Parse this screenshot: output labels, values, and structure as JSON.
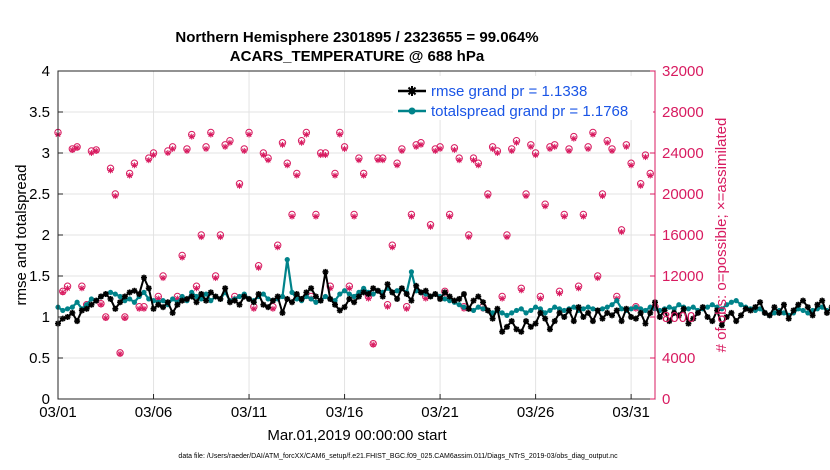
{
  "figure": {
    "title_line1": "Northern Hemisphere 2301895 / 2323655 = 99.064%",
    "title_line2": "ACARS_TEMPERATURE @ 688 hPa",
    "footer": "data file: /Users/raeder/DAI/ATM_forcXX/CAM6_setup/f.e21.FHIST_BGC.f09_025.CAM6assim.011/Diags_NTrS_2019-03/obs_diag_output.nc"
  },
  "colors": {
    "rmse": "#000000",
    "spread": "#00838a",
    "obs": "#d81b60",
    "legend_text": "#1a55e6"
  },
  "chart_data": {
    "type": "line",
    "xlabel": "Mar.01,2019 00:00:00 start",
    "ylabel_left": "rmse and totalspread",
    "ylabel_right": "# of obs: o=possible; ×=assimilated",
    "x_tick_labels": [
      "03/01",
      "03/06",
      "03/11",
      "03/16",
      "03/21",
      "03/26",
      "03/31"
    ],
    "x_tick_days": [
      0,
      5,
      10,
      15,
      20,
      25,
      30
    ],
    "xlim_days": [
      0,
      31.25
    ],
    "ylim_left": [
      0,
      4
    ],
    "y_ticks_left": [
      "0",
      "0.5",
      "1",
      "1.5",
      "2",
      "2.5",
      "3",
      "3.5",
      "4"
    ],
    "ylim_right": [
      0,
      32000
    ],
    "y_ticks_right": [
      "0",
      "4000",
      "8000",
      "12000",
      "16000",
      "20000",
      "24000",
      "28000",
      "32000"
    ],
    "grid": true,
    "legend_position": "top-right",
    "series": [
      {
        "name": "rmse grand pr = 1.1338",
        "step_days": 0.25,
        "values": [
          0.92,
          0.98,
          1.0,
          1.05,
          0.95,
          1.08,
          1.1,
          1.15,
          1.2,
          1.25,
          1.28,
          1.22,
          1.1,
          1.18,
          1.25,
          1.3,
          1.32,
          1.28,
          1.48,
          1.35,
          1.1,
          1.15,
          1.12,
          1.18,
          1.05,
          1.15,
          1.2,
          1.22,
          1.25,
          1.18,
          1.28,
          1.2,
          1.3,
          1.25,
          1.22,
          1.35,
          1.18,
          1.2,
          1.15,
          1.25,
          1.22,
          1.18,
          1.28,
          1.15,
          1.12,
          1.2,
          1.25,
          1.05,
          1.22,
          1.18,
          1.28,
          1.22,
          1.3,
          1.35,
          1.25,
          1.2,
          1.55,
          1.22,
          1.15,
          1.08,
          1.12,
          1.22,
          1.18,
          1.25,
          1.3,
          1.28,
          1.35,
          1.32,
          1.25,
          1.4,
          1.3,
          1.22,
          1.35,
          1.28,
          1.2,
          1.38,
          1.3,
          1.32,
          1.25,
          1.28,
          1.22,
          1.3,
          1.25,
          1.2,
          1.22,
          1.28,
          1.1,
          1.2,
          1.25,
          1.18,
          1.08,
          0.98,
          1.1,
          0.82,
          0.88,
          0.95,
          0.85,
          0.82,
          0.95,
          0.88,
          0.92,
          1.05,
          0.98,
          0.85,
          0.95,
          1.05,
          1.0,
          1.08,
          0.95,
          1.12,
          1.0,
          1.05,
          0.95,
          1.08,
          0.98,
          1.05,
          1.02,
          1.08,
          0.95,
          1.1,
          1.0,
          0.98,
          1.05,
          0.92,
          1.05,
          1.18,
          1.0,
          1.08,
          0.95,
          1.05,
          1.02,
          1.1,
          0.92,
          0.98,
          1.05,
          1.12,
          1.0,
          0.95,
          1.08,
          0.9,
          1.0,
          1.05,
          0.95,
          1.02,
          1.1,
          1.08,
          1.12,
          1.18,
          1.05,
          1.02,
          1.12,
          1.05,
          1.15,
          0.98,
          1.08,
          1.15,
          1.2,
          1.12,
          1.02,
          1.15,
          1.2,
          1.05,
          1.12,
          1.18,
          1.08,
          1.0,
          1.1,
          1.12,
          1.2,
          1.15,
          1.25,
          1.12,
          1.05,
          1.08,
          1.15,
          1.2,
          1.1,
          1.05,
          1.12,
          1.08,
          1.15,
          1.1,
          1.05,
          1.1,
          1.08,
          1.12,
          1.1,
          1.08,
          1.1,
          1.12,
          1.08,
          1.2,
          1.22,
          1.18,
          1.2,
          1.15,
          1.08,
          1.12,
          1.18,
          1.0,
          1.1,
          1.05,
          1.08,
          1.12,
          1.15,
          1.05,
          1.08,
          1.12,
          1.1,
          1.08,
          1.12,
          1.1,
          1.08,
          1.15,
          1.12,
          1.1,
          1.15,
          1.12,
          1.1,
          1.12,
          1.1,
          1.08,
          1.1,
          1.12,
          1.1,
          1.08,
          1.1,
          1.12,
          1.1,
          1.08,
          1.1,
          1.12,
          1.1,
          1.12,
          1.1,
          1.08,
          1.1,
          1.12,
          1.1
        ]
      },
      {
        "name": "totalspread grand pr = 1.1768",
        "step_days": 0.25,
        "values": [
          1.12,
          1.08,
          1.1,
          1.12,
          1.18,
          1.1,
          1.15,
          1.22,
          1.2,
          1.25,
          1.28,
          1.3,
          1.28,
          1.25,
          1.2,
          1.22,
          1.18,
          1.25,
          1.3,
          1.22,
          1.2,
          1.18,
          1.2,
          1.15,
          1.22,
          1.18,
          1.25,
          1.2,
          1.3,
          1.25,
          1.22,
          1.28,
          1.2,
          1.25,
          1.22,
          1.3,
          1.2,
          1.22,
          1.25,
          1.28,
          1.22,
          1.2,
          1.25,
          1.28,
          1.22,
          1.2,
          1.22,
          1.25,
          1.7,
          1.3,
          1.22,
          1.2,
          1.25,
          1.22,
          1.18,
          1.2,
          1.25,
          1.22,
          1.2,
          1.28,
          1.32,
          1.28,
          1.25,
          1.3,
          1.35,
          1.3,
          1.28,
          1.32,
          1.3,
          1.35,
          1.3,
          1.32,
          1.35,
          1.3,
          1.55,
          1.32,
          1.3,
          1.28,
          1.25,
          1.28,
          1.25,
          1.22,
          1.2,
          1.18,
          1.15,
          1.12,
          1.1,
          1.08,
          1.12,
          1.1,
          1.08,
          1.05,
          1.08,
          1.05,
          1.02,
          1.05,
          1.08,
          1.1,
          1.05,
          1.08,
          1.12,
          1.1,
          1.05,
          1.08,
          1.12,
          1.1,
          1.08,
          1.1,
          1.12,
          1.08,
          1.1,
          1.12,
          1.1,
          1.08,
          1.1,
          1.12,
          1.15,
          1.2,
          1.1,
          1.08,
          1.1,
          1.12,
          1.1,
          1.08,
          1.12,
          1.1,
          1.08,
          1.1,
          1.12,
          1.1,
          1.15,
          1.12,
          1.1,
          1.12,
          1.08,
          1.1,
          1.12,
          1.15,
          1.12,
          1.1,
          1.15,
          1.18,
          1.2,
          1.15,
          1.12,
          1.1,
          1.08,
          1.1,
          1.05,
          1.02,
          1.05,
          1.08,
          1.05,
          1.02,
          1.05,
          1.1,
          1.08,
          1.05,
          1.08,
          1.1,
          1.12,
          1.08,
          1.1,
          1.12,
          1.15,
          1.12,
          1.1,
          1.15,
          1.18,
          1.15,
          1.12,
          1.1,
          1.15,
          1.12,
          1.1,
          1.12,
          1.15,
          1.12,
          1.1,
          1.12,
          1.15,
          1.12,
          1.1,
          1.08,
          1.1,
          1.12,
          1.1,
          1.12,
          1.15,
          1.12,
          1.1,
          1.12,
          1.15,
          1.18,
          1.15,
          1.12,
          1.1,
          1.12,
          1.15,
          1.12,
          1.1,
          1.12,
          1.15,
          1.12,
          1.1,
          1.08,
          1.1,
          1.12,
          1.1,
          1.12,
          1.15,
          1.12,
          1.1,
          1.12,
          1.15,
          1.18,
          1.2,
          1.22,
          1.18,
          1.15,
          1.12,
          1.15,
          1.18,
          1.15,
          1.12,
          1.1,
          1.12,
          1.15,
          1.12,
          1.1,
          1.12,
          1.15,
          1.12,
          1.1,
          1.35,
          1.12,
          1.1,
          1.08
        ]
      }
    ],
    "obs_counts": {
      "name": "number of observations",
      "days": [
        0.0,
        0.25,
        0.5,
        0.75,
        1.0,
        1.25,
        1.5,
        1.75,
        2.0,
        2.25,
        2.5,
        2.75,
        3.0,
        3.25,
        3.5,
        3.75,
        4.0,
        4.25,
        4.5,
        4.75,
        5.0,
        5.25,
        5.5,
        5.75,
        6.0,
        6.25,
        6.5,
        6.75,
        7.0,
        7.25,
        7.5,
        7.75,
        8.0,
        8.25,
        8.5,
        8.75,
        9.0,
        9.25,
        9.5,
        9.75,
        10.0,
        10.25,
        10.5,
        10.75,
        11.0,
        11.25,
        11.5,
        11.75,
        12.0,
        12.25,
        12.5,
        12.75,
        13.0,
        13.25,
        13.5,
        13.75,
        14.0,
        14.25,
        14.5,
        14.75,
        15.0,
        15.25,
        15.5,
        15.75,
        16.0,
        16.25,
        16.5,
        16.75,
        17.0,
        17.25,
        17.5,
        17.75,
        18.0,
        18.25,
        18.5,
        18.75,
        19.0,
        19.25,
        19.5,
        19.75,
        20.0,
        20.25,
        20.5,
        20.75,
        21.0,
        21.25,
        21.5,
        21.75,
        22.0,
        22.25,
        22.5,
        22.75,
        23.0,
        23.25,
        23.5,
        23.75,
        24.0,
        24.25,
        24.5,
        24.75,
        25.0,
        25.25,
        25.5,
        25.75,
        26.0,
        26.25,
        26.5,
        26.75,
        27.0,
        27.25,
        27.5,
        27.75,
        28.0,
        28.25,
        28.5,
        28.75,
        29.0,
        29.25,
        29.5,
        29.75,
        30.0,
        30.25,
        30.5,
        30.75,
        31.0,
        31.25
      ],
      "possible": [
        26000,
        10500,
        11000,
        24400,
        24600,
        11000,
        9200,
        24200,
        24300,
        9300,
        8000,
        22500,
        20000,
        4500,
        8000,
        22000,
        23000,
        9000,
        9000,
        23500,
        24000,
        10000,
        12000,
        24200,
        24600,
        10000,
        14000,
        24400,
        25800,
        11000,
        16000,
        24600,
        26000,
        12000,
        16000,
        24800,
        25200,
        10000,
        21000,
        24400,
        26000,
        9000,
        13000,
        24000,
        23500,
        9000,
        15000,
        25000,
        23000,
        18000,
        22000,
        25200,
        26000,
        10000,
        18000,
        24000,
        24000,
        11000,
        22000,
        26000,
        24600,
        11000,
        18000,
        23500,
        22000,
        10000,
        5400,
        23500,
        23500,
        9200,
        15000,
        23000,
        24400,
        9000,
        18000,
        24800,
        25000,
        10000,
        17000,
        24400,
        24600,
        10500,
        18000,
        24500,
        23500,
        9000,
        16000,
        23500,
        23000,
        9000,
        20000,
        24600,
        24200,
        10000,
        16000,
        24400,
        25200,
        10800,
        20000,
        24800,
        24000,
        10000,
        19000,
        24600,
        24800,
        10500,
        18000,
        24400,
        25600,
        11000,
        18000,
        24600,
        26000,
        12000,
        20000,
        25200,
        24400,
        10000,
        16500,
        24800,
        23000,
        9000,
        21000,
        23800,
        22000,
        9000,
        13000,
        24400,
        0,
        0
      ],
      "assimilated": [
        25800,
        10400,
        10800,
        24300,
        24500,
        10800,
        9100,
        24000,
        24200,
        9200,
        7900,
        22300,
        19800,
        4400,
        7900,
        21800,
        22800,
        8800,
        8800,
        23300,
        23800,
        9800,
        11800,
        24000,
        24400,
        9800,
        13800,
        24200,
        25600,
        10800,
        15800,
        24400,
        25800,
        11800,
        15800,
        24600,
        25000,
        9800,
        20800,
        24200,
        25800,
        8800,
        12800,
        23800,
        23300,
        8800,
        14800,
        24800,
        22800,
        17800,
        21800,
        25000,
        25800,
        9800,
        17800,
        23800,
        23800,
        10800,
        21800,
        25800,
        24400,
        10800,
        17800,
        23300,
        21800,
        9800,
        5300,
        23300,
        23300,
        9000,
        14800,
        22800,
        24200,
        8800,
        17800,
        24600,
        24800,
        9800,
        16800,
        24200,
        24400,
        10300,
        17800,
        24300,
        23300,
        8800,
        15800,
        23300,
        22800,
        8800,
        19800,
        24400,
        24000,
        9800,
        15800,
        24200,
        25000,
        10600,
        19800,
        24600,
        23800,
        9800,
        18800,
        24400,
        24600,
        10300,
        17800,
        24200,
        25400,
        10800,
        17800,
        24400,
        25800,
        11800,
        19800,
        25000,
        24200,
        9800,
        16300,
        24600,
        22800,
        8800,
        20800,
        23600,
        21800,
        8800,
        12800,
        24200,
        0,
        0
      ]
    }
  }
}
